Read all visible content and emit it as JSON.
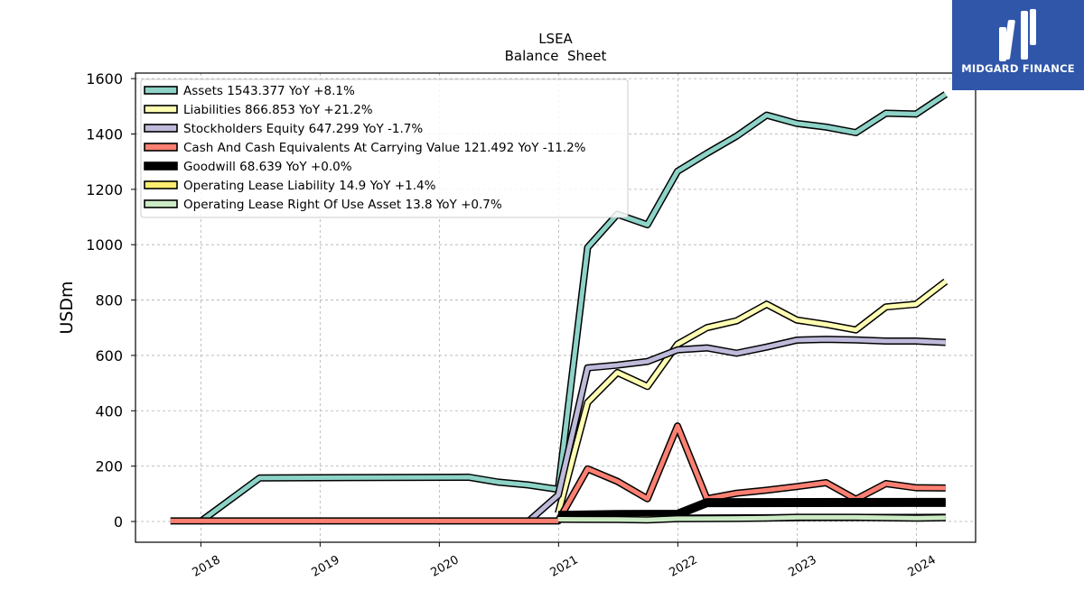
{
  "brand": {
    "name": "MIDGARD FINANCE",
    "color": "#2f56a8"
  },
  "chart_data": {
    "type": "line",
    "title": "LSEA",
    "subtitle": "Balance  Sheet",
    "xlabel": "",
    "ylabel": "USDm",
    "xlim": [
      "2017-06-15",
      "2024-07-01"
    ],
    "ylim": [
      -75,
      1620
    ],
    "x_ticks": [
      "2018",
      "2019",
      "2020",
      "2021",
      "2022",
      "2023",
      "2024"
    ],
    "y_ticks": [
      0,
      200,
      400,
      600,
      800,
      1000,
      1200,
      1400,
      1600
    ],
    "grid": true,
    "legend_position": "top-left",
    "series": [
      {
        "name": "Assets",
        "legend_label": "Assets  1543.377 YoY +8.1%",
        "color": "#8dd3c7",
        "width": 5,
        "points": [
          [
            "2017-12-31",
            0
          ],
          [
            "2018-06-30",
            157
          ],
          [
            "2020-03-31",
            160
          ],
          [
            "2020-06-30",
            142
          ],
          [
            "2020-09-30",
            132
          ],
          [
            "2020-12-31",
            116
          ],
          [
            "2021-03-31",
            990
          ],
          [
            "2021-06-30",
            1110
          ],
          [
            "2021-09-30",
            1072
          ],
          [
            "2021-12-31",
            1265
          ],
          [
            "2022-03-31",
            1330
          ],
          [
            "2022-06-30",
            1392
          ],
          [
            "2022-09-30",
            1468
          ],
          [
            "2022-12-31",
            1438
          ],
          [
            "2023-03-31",
            1425
          ],
          [
            "2023-06-30",
            1405
          ],
          [
            "2023-09-30",
            1475
          ],
          [
            "2023-12-31",
            1472
          ],
          [
            "2024-03-31",
            1543
          ]
        ]
      },
      {
        "name": "Liabilities",
        "legend_label": "Liabilities  866.853 YoY +21.2%",
        "color": "#ffffb3",
        "width": 5,
        "points": [
          [
            "2020-12-31",
            30
          ],
          [
            "2021-03-31",
            430
          ],
          [
            "2021-06-30",
            538
          ],
          [
            "2021-09-30",
            488
          ],
          [
            "2021-12-31",
            640
          ],
          [
            "2022-03-31",
            700
          ],
          [
            "2022-06-30",
            725
          ],
          [
            "2022-09-30",
            785
          ],
          [
            "2022-12-31",
            728
          ],
          [
            "2023-03-31",
            712
          ],
          [
            "2023-06-30",
            692
          ],
          [
            "2023-09-30",
            775
          ],
          [
            "2023-12-31",
            785
          ],
          [
            "2024-03-31",
            867
          ]
        ]
      },
      {
        "name": "Stockholders Equity",
        "legend_label": "Stockholders Equity  647.299 YoY -1.7%",
        "color": "#bebada",
        "width": 5,
        "points": [
          [
            "2020-09-30",
            0
          ],
          [
            "2020-12-31",
            95
          ],
          [
            "2021-03-31",
            555
          ],
          [
            "2021-06-30",
            565
          ],
          [
            "2021-09-30",
            578
          ],
          [
            "2021-12-31",
            620
          ],
          [
            "2022-03-31",
            627
          ],
          [
            "2022-06-30",
            608
          ],
          [
            "2022-09-30",
            630
          ],
          [
            "2022-12-31",
            655
          ],
          [
            "2023-03-31",
            658
          ],
          [
            "2023-06-30",
            656
          ],
          [
            "2023-09-30",
            652
          ],
          [
            "2023-12-31",
            652
          ],
          [
            "2024-03-31",
            647
          ]
        ]
      },
      {
        "name": "Cash And Cash Equivalents At Carrying Value",
        "legend_label": "Cash And Cash Equivalents At Carrying Value  121.492 YoY -11.2%",
        "color": "#fb8072",
        "width": 5,
        "points": [
          [
            "2017-09-30",
            2
          ],
          [
            "2020-12-31",
            2
          ],
          [
            "2021-03-31",
            190
          ],
          [
            "2021-06-30",
            145
          ],
          [
            "2021-09-30",
            82
          ],
          [
            "2021-12-31",
            345
          ],
          [
            "2022-03-31",
            82
          ],
          [
            "2022-06-30",
            102
          ],
          [
            "2022-09-30",
            113
          ],
          [
            "2022-12-31",
            126
          ],
          [
            "2023-03-31",
            140
          ],
          [
            "2023-06-30",
            80
          ],
          [
            "2023-09-30",
            137
          ],
          [
            "2023-12-31",
            122
          ],
          [
            "2024-03-31",
            121
          ]
        ]
      },
      {
        "name": "Goodwill",
        "legend_label": "Goodwill  68.639 YoY +0.0%",
        "color": "#000000",
        "width": 7,
        "points": [
          [
            "2020-12-31",
            22
          ],
          [
            "2021-06-30",
            25
          ],
          [
            "2021-12-31",
            26
          ],
          [
            "2022-03-31",
            68
          ],
          [
            "2022-06-30",
            68
          ],
          [
            "2024-03-31",
            68.6
          ]
        ]
      },
      {
        "name": "Operating Lease Liability",
        "legend_label": "Operating Lease Liability  14.9 YoY +1.4%",
        "color": "#ffed6f",
        "width": 5,
        "points": [
          [
            "2020-12-31",
            10
          ],
          [
            "2022-12-31",
            14
          ],
          [
            "2024-03-31",
            14.9
          ]
        ]
      },
      {
        "name": "Operating Lease Right Of Use Asset",
        "legend_label": "Operating Lease Right Of Use Asset  13.8 YoY +0.7%",
        "color": "#ccebc5",
        "width": 5,
        "points": [
          [
            "2020-12-31",
            8
          ],
          [
            "2021-06-30",
            7
          ],
          [
            "2021-09-30",
            6
          ],
          [
            "2021-12-31",
            10
          ],
          [
            "2022-06-30",
            11
          ],
          [
            "2022-09-30",
            12
          ],
          [
            "2022-12-31",
            15
          ],
          [
            "2023-06-30",
            15
          ],
          [
            "2023-12-31",
            12
          ],
          [
            "2024-03-31",
            13.8
          ]
        ]
      }
    ]
  }
}
